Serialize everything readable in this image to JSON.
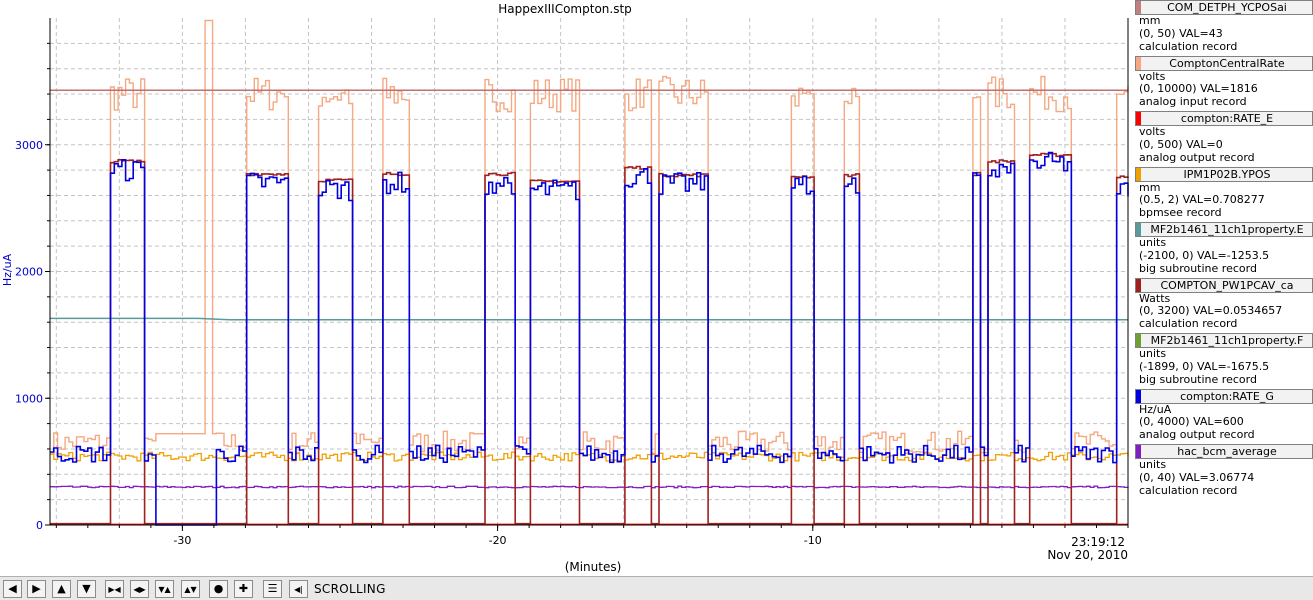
{
  "window": {
    "title": "HappexIIICompton.stp"
  },
  "chart_data": {
    "type": "line",
    "title": "HappexIIICompton.stp",
    "xlabel": "(Minutes)",
    "ylabel": "Hz/uA",
    "xlim": [
      -34.2,
      0
    ],
    "ylim": [
      0,
      4000
    ],
    "x_ticks": [
      -30,
      -20,
      -10
    ],
    "x_tick_labels": [
      "-30",
      "-20",
      "-10"
    ],
    "y_ticks": [
      0,
      1000,
      2000,
      3000
    ],
    "y_tick_labels": [
      "0",
      "1000",
      "2000",
      "3000"
    ],
    "time_label": "23:19:12",
    "date_label": "Nov 20, 2010",
    "grid": true,
    "legend_placement": "right",
    "series": [
      {
        "name": "compton:RATE_G",
        "color": "#0000e0",
        "unit_on_axis": true,
        "baseline_mean": 560,
        "baseline_noise": 70,
        "on_mean": 2730,
        "on_noise": 90,
        "segments": [
          {
            "x0": -34.2,
            "x1": -32.4,
            "level": "off"
          },
          {
            "x0": -32.4,
            "x1": -31.3,
            "level": "on",
            "mean": 2800
          },
          {
            "x0": -31.3,
            "x1": -30.9,
            "level": "off"
          },
          {
            "x0": -30.9,
            "x1": -29.0,
            "level": "zero"
          },
          {
            "x0": -29.0,
            "x1": -28.0,
            "level": "off"
          },
          {
            "x0": -28.0,
            "x1": -26.7,
            "level": "on",
            "mean": 2700
          },
          {
            "x0": -26.7,
            "x1": -25.7,
            "level": "off"
          },
          {
            "x0": -25.7,
            "x1": -24.7,
            "level": "on",
            "mean": 2650
          },
          {
            "x0": -24.7,
            "x1": -23.7,
            "level": "off"
          },
          {
            "x0": -23.7,
            "x1": -22.8,
            "level": "on",
            "mean": 2700
          },
          {
            "x0": -22.8,
            "x1": -20.5,
            "level": "off"
          },
          {
            "x0": -20.5,
            "x1": -19.5,
            "level": "on",
            "mean": 2700
          },
          {
            "x0": -19.5,
            "x1": -19.0,
            "level": "off"
          },
          {
            "x0": -19.0,
            "x1": -17.5,
            "level": "on",
            "mean": 2640
          },
          {
            "x0": -17.5,
            "x1": -16.0,
            "level": "off"
          },
          {
            "x0": -16.0,
            "x1": -15.2,
            "level": "on",
            "mean": 2750
          },
          {
            "x0": -15.2,
            "x1": -14.9,
            "level": "off"
          },
          {
            "x0": -14.9,
            "x1": -13.4,
            "level": "on",
            "mean": 2690
          },
          {
            "x0": -13.4,
            "x1": -10.7,
            "level": "off"
          },
          {
            "x0": -10.7,
            "x1": -10.0,
            "level": "on",
            "mean": 2680
          },
          {
            "x0": -10.0,
            "x1": -9.0,
            "level": "off"
          },
          {
            "x0": -9.0,
            "x1": -8.6,
            "level": "on",
            "mean": 2690
          },
          {
            "x0": -8.6,
            "x1": -5.0,
            "level": "off"
          },
          {
            "x0": -5.0,
            "x1": -4.7,
            "level": "on",
            "mean": 2700
          },
          {
            "x0": -4.7,
            "x1": -4.5,
            "level": "off"
          },
          {
            "x0": -4.5,
            "x1": -3.7,
            "level": "on",
            "mean": 2800
          },
          {
            "x0": -3.7,
            "x1": -3.2,
            "level": "off"
          },
          {
            "x0": -3.2,
            "x1": -1.9,
            "level": "on",
            "mean": 2850
          },
          {
            "x0": -1.9,
            "x1": -0.4,
            "level": "off"
          },
          {
            "x0": -0.4,
            "x1": 0.0,
            "level": "on",
            "mean": 2680
          }
        ]
      },
      {
        "name": "ComptonCentralRate",
        "color": "#f5a882",
        "baseline_mean": 650,
        "baseline_noise": 90,
        "on_mean": 3300,
        "on_noise": 140,
        "scale": "follow-blue"
      },
      {
        "name": "COMPTON_PW1PCAV_ca",
        "color": "#a02020",
        "scale": "follow-blue",
        "on_mean": 2790,
        "off_value": 10
      },
      {
        "name": "IPM1P02B.YPOS",
        "color": "#f0a000",
        "mean": 540,
        "noise": 35
      },
      {
        "name": "hac_bcm_average",
        "color": "#8020c0",
        "mean": 300,
        "noise": 6
      },
      {
        "name": "MF2b1461_11ch1property.E",
        "color": "#5a9a9a",
        "points": [
          [
            -34.2,
            1630
          ],
          [
            -29.5,
            1630
          ],
          [
            -28.5,
            1620
          ],
          [
            0,
            1620
          ]
        ]
      },
      {
        "name": "COM_DETPH_YCPOSai",
        "color": "#c07070",
        "points": [
          [
            -34.2,
            3430
          ],
          [
            0,
            3430
          ]
        ]
      },
      {
        "name": "compton:RATE_E",
        "color": "#ff0000",
        "points": [
          [
            -34.2,
            5
          ],
          [
            0,
            5
          ]
        ]
      }
    ]
  },
  "legend": [
    {
      "label": "COM_DETPH_YCPOSai",
      "color": "#c08080",
      "unit": "mm",
      "range": "(0, 50)  VAL=43",
      "record": "calculation record"
    },
    {
      "label": "ComptonCentralRate",
      "color": "#f5a882",
      "unit": "volts",
      "range": "(0, 10000) VAL=1816",
      "record": "analog input record"
    },
    {
      "label": "compton:RATE_E",
      "color": "#ff0000",
      "unit": "volts",
      "range": "(0, 500)  VAL=0",
      "record": "analog output record"
    },
    {
      "label": "IPM1P02B.YPOS",
      "color": "#f0a000",
      "unit": "mm",
      "range": "(0.5, 2) VAL=0.708277",
      "record": "bpmsee record"
    },
    {
      "label": "MF2b1461_11ch1property.E",
      "color": "#5a9a9a",
      "unit": "units",
      "range": "(-2100, 0) VAL=-1253.5",
      "record": "big subroutine record"
    },
    {
      "label": "COMPTON_PW1PCAV_ca",
      "color": "#a02020",
      "unit": "Watts",
      "range": "(0, 3200) VAL=0.0534657",
      "record": "calculation record"
    },
    {
      "label": "MF2b1461_11ch1property.F",
      "color": "#70a030",
      "unit": "units",
      "range": "(-1899, 0)  VAL=-1675.5",
      "record": "big subroutine record"
    },
    {
      "label": "compton:RATE_G",
      "color": "#0000e0",
      "unit": "Hz/uA",
      "range": "(0, 4000) VAL=600",
      "record": "analog output record"
    },
    {
      "label": "hac_bcm_average",
      "color": "#8020c0",
      "unit": "units",
      "range": "(0, 40) VAL=3.06774",
      "record": "calculation record"
    }
  ],
  "toolbar": {
    "buttons": [
      {
        "name": "scroll-left-button",
        "glyph": "◀",
        "icon": "arrow-left-icon"
      },
      {
        "name": "scroll-right-button",
        "glyph": "▶",
        "icon": "arrow-right-icon"
      },
      {
        "name": "scroll-up-button",
        "glyph": "▲",
        "icon": "arrow-up-icon"
      },
      {
        "name": "scroll-down-button",
        "glyph": "▼",
        "icon": "arrow-down-icon"
      },
      {
        "name": "zoom-in-x-button",
        "glyph": "▶◀",
        "icon": "zoom-in-horizontal-icon"
      },
      {
        "name": "zoom-out-x-button",
        "glyph": "◀▶",
        "icon": "zoom-out-horizontal-icon"
      },
      {
        "name": "zoom-in-y-button",
        "glyph": "▼▲",
        "icon": "zoom-in-vertical-icon"
      },
      {
        "name": "zoom-out-y-button",
        "glyph": "▲▼",
        "icon": "zoom-out-vertical-icon"
      },
      {
        "name": "autoscale-button",
        "glyph": "●",
        "icon": "autoscale-icon"
      },
      {
        "name": "add-trace-button",
        "glyph": "✚",
        "icon": "plus-icon"
      },
      {
        "name": "config-button",
        "glyph": "☰",
        "icon": "config-icon"
      },
      {
        "name": "back-button",
        "glyph": "◀|",
        "icon": "undo-icon"
      }
    ],
    "status": "SCROLLING"
  }
}
